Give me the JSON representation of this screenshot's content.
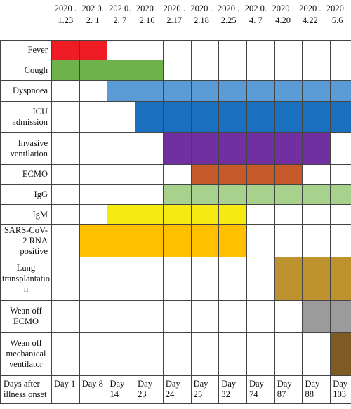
{
  "dates": [
    "2020.1.23",
    "2020.2.1",
    "2020.2.7",
    "2020.2.16",
    "2020.2.17",
    "2020.2.18",
    "2020.2.25",
    "2020.4.7",
    "2020.4.20",
    "2020.4.22",
    "2020.5.6"
  ],
  "date_display": [
    "2020 .1.23",
    "202 0.2. 1",
    "202 0.2. 7",
    "2020 .2.16",
    "2020 .2.17",
    "2020 .2.18",
    "2020 .2.25",
    "202 0.4. 7",
    "2020 .4.20",
    "2020 .4.22",
    "2020 .5.6"
  ],
  "rows": [
    {
      "label": "Fever",
      "align": "right",
      "color": "#ee1c25",
      "start": 0,
      "end": 1,
      "height": 28
    },
    {
      "label": "Cough",
      "align": "right",
      "color": "#6db24a",
      "start": 0,
      "end": 3,
      "height": 29
    },
    {
      "label": "Dyspnoea",
      "align": "right",
      "color": "#5b9bd5",
      "start": 2,
      "end": 10,
      "height": 30
    },
    {
      "label": "ICU admission",
      "align": "right",
      "color": "#1b6fbf",
      "start": 3,
      "end": 10,
      "height": 44
    },
    {
      "label": "Invasive ventilation",
      "align": "right",
      "color": "#7030a0",
      "start": 4,
      "end": 9,
      "height": 46
    },
    {
      "label": "ECMO",
      "align": "right",
      "color": "#c65a2b",
      "start": 5,
      "end": 8,
      "height": 28
    },
    {
      "label": "IgG",
      "align": "right",
      "color": "#a9d18e",
      "start": 4,
      "end": 10,
      "height": 29
    },
    {
      "label": "IgM",
      "align": "right",
      "color": "#f5ea12",
      "start": 2,
      "end": 6,
      "height": 29
    },
    {
      "label": "SARS-CoV-2 RNA positive",
      "align": "right",
      "color": "#ffc000",
      "start": 1,
      "end": 6,
      "height": 45
    },
    {
      "label": "Lung transplantatio n",
      "align": "center",
      "color": "#bf9230",
      "start": 8,
      "end": 10,
      "height": 62
    },
    {
      "label": "Wean off ECMO",
      "align": "center",
      "color": "#9b9b9b",
      "start": 9,
      "end": 10,
      "height": 45
    },
    {
      "label": "Wean off mechanical ventilator",
      "align": "center",
      "color": "#7f5b24",
      "start": 10,
      "end": 10,
      "height": 62
    }
  ],
  "days_label": "Days after illness onset",
  "days": [
    "Day 1",
    "Day 8",
    "Day 14",
    "Day 23",
    "Day 24",
    "Day 25",
    "Day 32",
    "Day 74",
    "Day 87",
    "Day 88",
    "Day 103"
  ]
}
